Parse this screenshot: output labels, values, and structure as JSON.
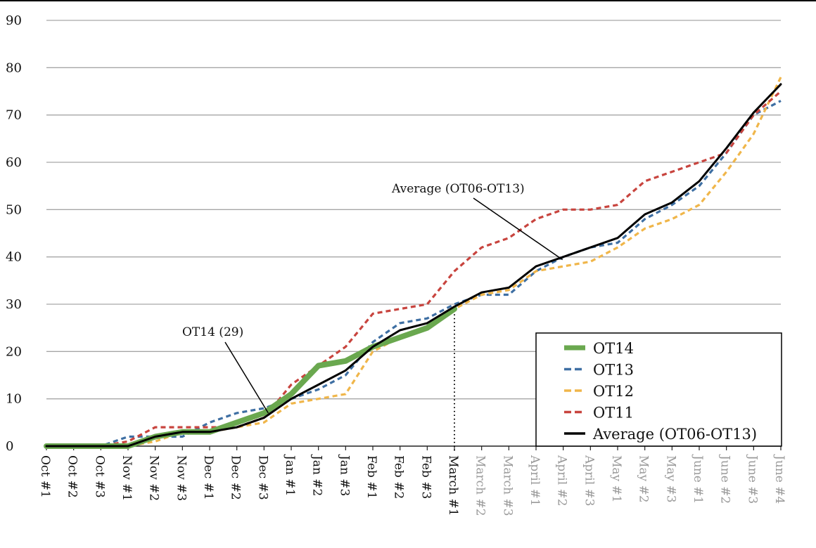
{
  "chart_data": {
    "type": "line",
    "title": "",
    "xlabel": "",
    "ylabel": "",
    "ylim": [
      0,
      90
    ],
    "y_ticks": [
      "0",
      "10",
      "20",
      "30",
      "40",
      "50",
      "60",
      "70",
      "80",
      "90"
    ],
    "grid": true,
    "legend_placement": "bottom-right",
    "categories": [
      "Oct #1",
      "Oct #2",
      "Oct #3",
      "Nov #1",
      "Nov #2",
      "Nov #3",
      "Dec #1",
      "Dec #2",
      "Dec #3",
      "Jan #1",
      "Jan #2",
      "Jan #3",
      "Feb #1",
      "Feb #2",
      "Feb #3",
      "March #1",
      "March #2",
      "March #3",
      "April #1",
      "April #2",
      "April #3",
      "May #1",
      "May #2",
      "May #3",
      "June #1",
      "June #2",
      "June #3",
      "June #4"
    ],
    "current_period_index": 15,
    "series": [
      {
        "name": "OT14",
        "color": "#6aa84f",
        "style": "solid-thick",
        "values": [
          0,
          0,
          0,
          0,
          2,
          3,
          3,
          5,
          7,
          11,
          17,
          18,
          21,
          23,
          25,
          29,
          null,
          null,
          null,
          null,
          null,
          null,
          null,
          null,
          null,
          null,
          null,
          null
        ]
      },
      {
        "name": "OT13",
        "color": "#3e6fa3",
        "style": "dashed",
        "values": [
          0,
          0,
          0,
          2,
          2,
          2,
          5,
          7,
          8,
          10,
          12,
          15,
          22,
          26,
          27,
          30,
          32,
          32,
          37,
          40,
          42,
          43,
          48,
          51,
          55,
          62,
          70,
          73
        ]
      },
      {
        "name": "OT12",
        "color": "#f0b64a",
        "style": "dashed",
        "values": [
          0,
          0,
          0,
          0,
          1,
          3,
          3,
          4,
          5,
          9,
          10,
          11,
          20,
          23,
          25,
          29,
          32,
          33,
          37,
          38,
          39,
          42,
          46,
          48,
          51,
          58,
          66,
          78
        ]
      },
      {
        "name": "OT11",
        "color": "#c8443e",
        "style": "dashed",
        "values": [
          0,
          0,
          0,
          1,
          4,
          4,
          4,
          4,
          6,
          13,
          17,
          21,
          28,
          29,
          30,
          37,
          42,
          44,
          48,
          50,
          50,
          51,
          56,
          58,
          60,
          62,
          70,
          75
        ]
      },
      {
        "name": "Average (OT06-OT13)",
        "color": "#000000",
        "style": "solid",
        "values": [
          0,
          0,
          0,
          0,
          2,
          3,
          3,
          4,
          6,
          10,
          13,
          16,
          21,
          24.5,
          26,
          29.5,
          32.5,
          33.5,
          38,
          40,
          42,
          44,
          49,
          51.5,
          56,
          63,
          70.5,
          76.5
        ]
      }
    ],
    "annotations": [
      {
        "text": "Average (OT06-OT13)",
        "points_to_index": 19,
        "series": "Average (OT06-OT13)"
      },
      {
        "text": "OT14 (29)",
        "points_to_index": 8,
        "series": "OT14"
      }
    ]
  }
}
